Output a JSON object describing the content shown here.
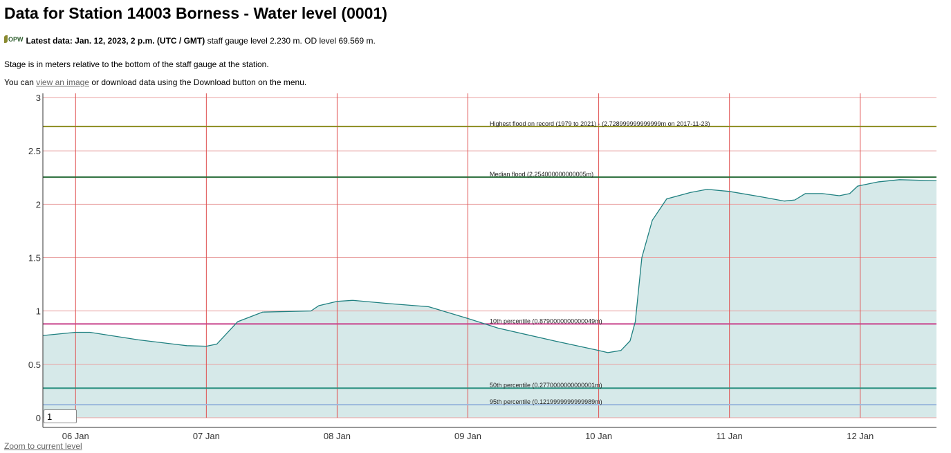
{
  "title": "Data for Station 14003 Borness - Water level (0001)",
  "logo_text": "OPW",
  "latest_label": "Latest data: Jan. 12, 2023, 2 p.m. (UTC / GMT)",
  "latest_rest": " staff gauge level 2.230 m. OD level 69.569 m.",
  "stage_note": "Stage is in meters relative to the bottom of the staff gauge at the station.",
  "image_prefix": "You can ",
  "image_link": "view an image",
  "image_suffix": " or download data using the Download button on the menu.",
  "zoom_input_value": "1",
  "zoom_link": "Zoom to current level",
  "chart_data": {
    "type": "area",
    "title": "",
    "xlabel": "",
    "ylabel": "",
    "x_unit": "days since 06 Jan 00:00",
    "xlim": [
      -0.25,
      6.583
    ],
    "ylim": [
      0,
      3
    ],
    "yticks": [
      0,
      0.5,
      1,
      1.5,
      2,
      2.5,
      3
    ],
    "ytick_labels": [
      "0",
      "0.5",
      "1",
      "1.5",
      "2",
      "2.5",
      "3"
    ],
    "xticks": [
      0,
      1,
      2,
      3,
      4,
      5,
      6
    ],
    "xtick_labels": [
      "06 Jan",
      "07 Jan",
      "08 Jan",
      "09 Jan",
      "10 Jan",
      "11 Jan",
      "12 Jan"
    ],
    "grid": true,
    "series": [
      {
        "name": "Water level",
        "color": "#1f8080",
        "fill": "#d6e9e9",
        "x": [
          -0.25,
          0,
          0.11,
          0.48,
          0.85,
          1.0,
          1.08,
          1.24,
          1.43,
          1.8,
          1.86,
          2.0,
          2.12,
          2.39,
          2.7,
          3.0,
          3.23,
          3.66,
          4.0,
          4.07,
          4.17,
          4.24,
          4.28,
          4.33,
          4.41,
          4.52,
          4.7,
          4.83,
          5.0,
          5.24,
          5.42,
          5.5,
          5.58,
          5.71,
          5.84,
          5.92,
          5.98,
          6.14,
          6.3,
          6.583
        ],
        "y": [
          0.77,
          0.8,
          0.8,
          0.73,
          0.675,
          0.67,
          0.69,
          0.9,
          0.99,
          1.0,
          1.05,
          1.09,
          1.1,
          1.07,
          1.04,
          0.93,
          0.84,
          0.72,
          0.63,
          0.61,
          0.63,
          0.72,
          0.9,
          1.5,
          1.85,
          2.05,
          2.11,
          2.14,
          2.12,
          2.07,
          2.03,
          2.04,
          2.1,
          2.1,
          2.08,
          2.1,
          2.17,
          2.21,
          2.23,
          2.22
        ]
      }
    ],
    "reference_lines": [
      {
        "value": 2.729,
        "color": "#8c8c1e",
        "label": "Highest flood on record (1979 to 2021) - (2.728999999999999m on 2017-11-23)"
      },
      {
        "value": 2.254,
        "color": "#2a6e3a",
        "label": "Median flood (2.254000000000005m)"
      },
      {
        "value": 0.879,
        "color": "#c8408a",
        "label": "10th percentile (0.8790000000000049m)"
      },
      {
        "value": 0.277,
        "color": "#2a9080",
        "label": "50th percentile (0.2770000000000001m)"
      },
      {
        "value": 0.122,
        "color": "#9ab8dc",
        "label": "95th percentile (0.1219999999999989m)"
      }
    ]
  }
}
